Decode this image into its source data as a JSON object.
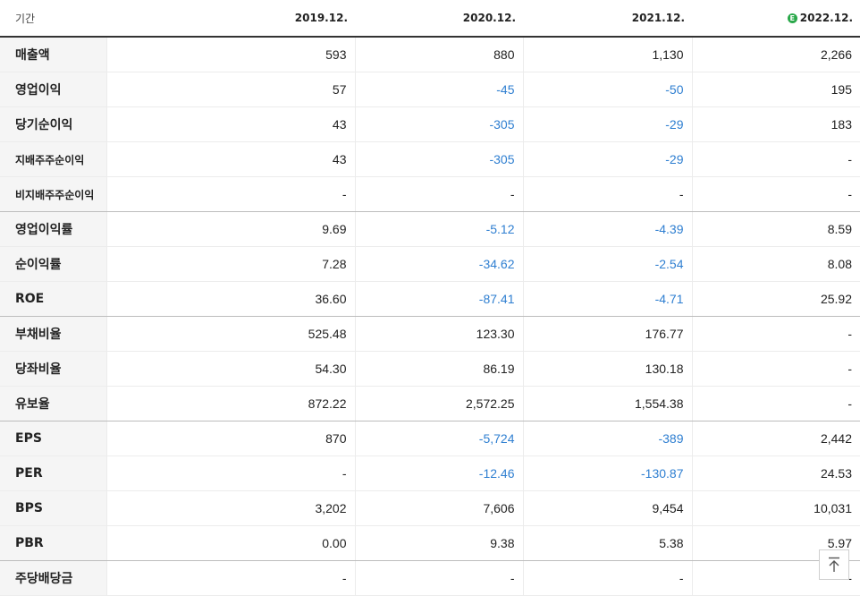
{
  "header": {
    "label": "기간",
    "periods": [
      "2019.12.",
      "2020.12.",
      "2021.12.",
      "2022.12."
    ],
    "estimate_badge": "E"
  },
  "rows": [
    {
      "label": "매출액",
      "values": [
        "593",
        "880",
        "1,130",
        "2,266"
      ]
    },
    {
      "label": "영업이익",
      "values": [
        "57",
        "-45",
        "-50",
        "195"
      ]
    },
    {
      "label": "당기순이익",
      "values": [
        "43",
        "-305",
        "-29",
        "183"
      ]
    },
    {
      "label": "지배주주순이익",
      "values": [
        "43",
        "-305",
        "-29",
        "-"
      ]
    },
    {
      "label": "비지배주주순이익",
      "values": [
        "-",
        "-",
        "-",
        "-"
      ]
    },
    {
      "label": "영업이익률",
      "values": [
        "9.69",
        "-5.12",
        "-4.39",
        "8.59"
      ]
    },
    {
      "label": "순이익률",
      "values": [
        "7.28",
        "-34.62",
        "-2.54",
        "8.08"
      ]
    },
    {
      "label": "ROE",
      "values": [
        "36.60",
        "-87.41",
        "-4.71",
        "25.92"
      ]
    },
    {
      "label": "부채비율",
      "values": [
        "525.48",
        "123.30",
        "176.77",
        "-"
      ]
    },
    {
      "label": "당좌비율",
      "values": [
        "54.30",
        "86.19",
        "130.18",
        "-"
      ]
    },
    {
      "label": "유보율",
      "values": [
        "872.22",
        "2,572.25",
        "1,554.38",
        "-"
      ]
    },
    {
      "label": "EPS",
      "values": [
        "870",
        "-5,724",
        "-389",
        "2,442"
      ]
    },
    {
      "label": "PER",
      "values": [
        "-",
        "-12.46",
        "-130.87",
        "24.53"
      ]
    },
    {
      "label": "BPS",
      "values": [
        "3,202",
        "7,606",
        "9,454",
        "10,031"
      ]
    },
    {
      "label": "PBR",
      "values": [
        "0.00",
        "9.38",
        "5.38",
        "5.97"
      ]
    },
    {
      "label": "주당배당금",
      "values": [
        "-",
        "-",
        "-",
        "-"
      ]
    }
  ],
  "colors": {
    "negative": "#2f7fd1",
    "estimate_badge": "#2aa84a"
  },
  "scroll_top_icon": "arrow-up-icon"
}
